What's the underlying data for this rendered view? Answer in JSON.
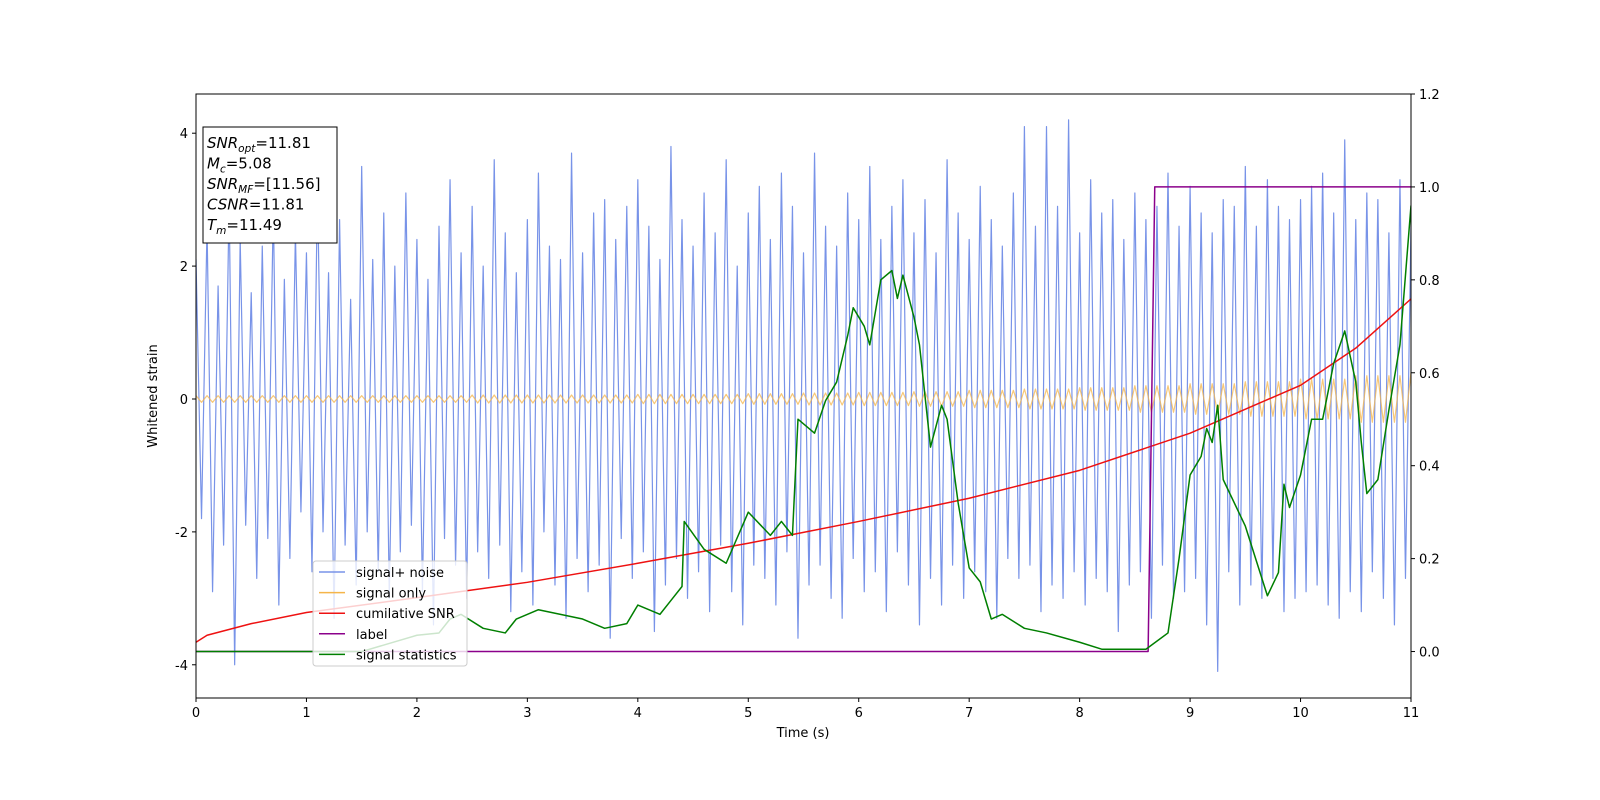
{
  "chart_data": {
    "type": "line",
    "xlabel": "Time (s)",
    "ylabel": "Whitened strain",
    "xlim": [
      0,
      11
    ],
    "xticks": [
      0,
      1,
      2,
      3,
      4,
      5,
      6,
      7,
      8,
      9,
      10,
      11
    ],
    "ylim": [
      -4.5,
      4.59
    ],
    "yticks": [
      -4,
      -2,
      0,
      2,
      4
    ],
    "y2lim": [
      -0.1,
      1.2
    ],
    "y2ticks": [
      {
        "value": 0,
        "label": "0.0"
      },
      {
        "value": 0.2,
        "label": "0.2"
      },
      {
        "value": 0.4,
        "label": "0.4"
      },
      {
        "value": 0.6,
        "label": "0.6"
      },
      {
        "value": 0.8,
        "label": "0.8"
      },
      {
        "value": 1.0,
        "label": "1.0"
      },
      {
        "value": 1.2,
        "label": "1.2"
      }
    ],
    "legend": "lower left",
    "annotation": [
      {
        "main": "SNR",
        "sub": "opt",
        "rest": "=11.81"
      },
      {
        "main": "M",
        "sub": "c",
        "rest": "=5.08"
      },
      {
        "main": "SNR",
        "sub": "MF",
        "rest": "=[11.56]"
      },
      {
        "main": "CSNR",
        "rest": "=11.81"
      },
      {
        "main": "T",
        "sub": "m",
        "rest": "=11.49"
      }
    ],
    "x": [
      0,
      0.05,
      0.1,
      0.15,
      0.2,
      0.25,
      0.3,
      0.35,
      0.4,
      0.45,
      0.5,
      0.55,
      0.6,
      0.65,
      0.7,
      0.75,
      0.8,
      0.85,
      0.9,
      0.95,
      1,
      1.05,
      1.1,
      1.15,
      1.2,
      1.25,
      1.3,
      1.35,
      1.4,
      1.45,
      1.5,
      1.55,
      1.6,
      1.65,
      1.7,
      1.75,
      1.8,
      1.85,
      1.9,
      1.95,
      2,
      2.05,
      2.1,
      2.15,
      2.2,
      2.25,
      2.3,
      2.35,
      2.4,
      2.45,
      2.5,
      2.55,
      2.6,
      2.65,
      2.7,
      2.75,
      2.8,
      2.85,
      2.9,
      2.95,
      3,
      3.05,
      3.1,
      3.15,
      3.2,
      3.25,
      3.3,
      3.35,
      3.4,
      3.45,
      3.5,
      3.55,
      3.6,
      3.65,
      3.7,
      3.75,
      3.8,
      3.85,
      3.9,
      3.95,
      4,
      4.05,
      4.1,
      4.15,
      4.2,
      4.25,
      4.3,
      4.35,
      4.4,
      4.45,
      4.5,
      4.55,
      4.6,
      4.65,
      4.7,
      4.75,
      4.8,
      4.85,
      4.9,
      4.95,
      5,
      5.05,
      5.1,
      5.15,
      5.2,
      5.25,
      5.3,
      5.35,
      5.4,
      5.45,
      5.5,
      5.55,
      5.6,
      5.65,
      5.7,
      5.75,
      5.8,
      5.85,
      5.9,
      5.95,
      6,
      6.05,
      6.1,
      6.15,
      6.2,
      6.25,
      6.3,
      6.35,
      6.4,
      6.45,
      6.5,
      6.55,
      6.6,
      6.65,
      6.7,
      6.75,
      6.8,
      6.85,
      6.9,
      6.95,
      7,
      7.05,
      7.1,
      7.15,
      7.2,
      7.25,
      7.3,
      7.35,
      7.4,
      7.45,
      7.5,
      7.55,
      7.6,
      7.65,
      7.7,
      7.75,
      7.8,
      7.85,
      7.9,
      7.95,
      8,
      8.05,
      8.1,
      8.15,
      8.2,
      8.25,
      8.3,
      8.35,
      8.4,
      8.45,
      8.5,
      8.55,
      8.6,
      8.65,
      8.7,
      8.75,
      8.8,
      8.85,
      8.9,
      8.95,
      9,
      9.05,
      9.1,
      9.15,
      9.2,
      9.25,
      9.3,
      9.35,
      9.4,
      9.45,
      9.5,
      9.55,
      9.6,
      9.65,
      9.7,
      9.75,
      9.8,
      9.85,
      9.9,
      9.95,
      10,
      10.05,
      10.1,
      10.15,
      10.2,
      10.25,
      10.3,
      10.35,
      10.4,
      10.45,
      10.5,
      10.55,
      10.6,
      10.65,
      10.7,
      10.75,
      10.8,
      10.85,
      10.9,
      10.95,
      11
    ],
    "series": [
      {
        "name": "signal+ noise",
        "color": "#7893e8",
        "values": [
          2.1,
          -1.8,
          2.6,
          -2.9,
          1.7,
          -2.2,
          3.0,
          -4.0,
          2.4,
          -1.9,
          1.6,
          -2.7,
          2.3,
          -2.1,
          2.9,
          -3.1,
          1.8,
          -2.4,
          2.5,
          -1.7,
          2.2,
          -2.6,
          3.2,
          -2.0,
          1.9,
          -3.3,
          2.7,
          -2.2,
          1.5,
          -2.8,
          3.5,
          -2.0,
          2.1,
          -2.6,
          2.8,
          -3.0,
          2.0,
          -2.3,
          3.1,
          -1.9,
          2.4,
          -2.9,
          1.8,
          -3.4,
          2.6,
          -2.1,
          3.3,
          -2.5,
          2.2,
          -3.0,
          2.9,
          -2.3,
          2.0,
          -2.7,
          3.6,
          -2.2,
          2.5,
          -3.2,
          1.9,
          -2.6,
          2.7,
          -3.1,
          3.4,
          -2.0,
          2.3,
          -2.8,
          2.1,
          -3.3,
          3.7,
          -2.4,
          2.2,
          -2.9,
          2.8,
          -2.5,
          3.0,
          -3.6,
          2.4,
          -2.1,
          2.9,
          -2.7,
          3.3,
          -2.3,
          2.6,
          -3.5,
          2.1,
          -2.8,
          3.8,
          -2.4,
          2.7,
          -3.0,
          2.3,
          -2.6,
          3.1,
          -3.2,
          2.5,
          -2.2,
          3.6,
          -2.9,
          2.0,
          -3.4,
          2.8,
          -2.5,
          3.2,
          -2.7,
          2.4,
          -3.1,
          3.4,
          -2.3,
          2.9,
          -3.6,
          2.2,
          -2.8,
          3.7,
          -2.5,
          2.6,
          -3.0,
          2.3,
          -3.3,
          3.1,
          -2.4,
          2.7,
          -2.9,
          3.5,
          -2.6,
          2.4,
          -3.2,
          2.9,
          -2.3,
          3.3,
          -2.8,
          2.5,
          -3.4,
          3.0,
          -2.7,
          2.2,
          -3.1,
          3.6,
          -2.5,
          2.8,
          -3.0,
          2.4,
          -2.6,
          3.2,
          -2.9,
          2.7,
          -3.3,
          2.3,
          -2.4,
          3.1,
          -2.7,
          4.1,
          -2.5,
          2.6,
          -3.2,
          4.1,
          -2.8,
          2.9,
          -3.0,
          4.2,
          -2.6,
          2.5,
          -3.1,
          3.3,
          -2.7,
          2.8,
          -2.9,
          3.0,
          -3.5,
          2.4,
          -2.8,
          3.1,
          -2.6,
          2.7,
          -3.3,
          2.9,
          -2.5,
          3.4,
          -3.0,
          2.6,
          -2.9,
          3.2,
          -2.7,
          2.8,
          -3.4,
          2.5,
          -4.1,
          3.0,
          -2.6,
          2.9,
          -3.1,
          3.5,
          -2.8,
          2.6,
          -3.0,
          3.3,
          -2.7,
          2.9,
          -3.2,
          2.7,
          -3.0,
          3.0,
          -2.9,
          3.2,
          -2.8,
          3.4,
          -3.1,
          2.8,
          -3.3,
          3.9,
          -2.9,
          2.7,
          -3.2,
          3.1,
          -2.6,
          3.0,
          -3.0,
          2.5,
          -3.4,
          3.3,
          -2.7,
          2.6
        ]
      },
      {
        "name": "signal only",
        "color": "#f5b54a",
        "values": [
          0.05,
          -0.05,
          0.05,
          -0.05,
          0.05,
          -0.05,
          0.05,
          -0.05,
          0.05,
          -0.05,
          0.05,
          -0.05,
          0.05,
          -0.05,
          0.05,
          -0.05,
          0.05,
          -0.05,
          0.05,
          -0.05,
          0.05,
          -0.05,
          0.05,
          -0.05,
          0.05,
          -0.05,
          0.05,
          -0.05,
          0.05,
          -0.05,
          0.05,
          -0.05,
          0.05,
          -0.05,
          0.05,
          -0.05,
          0.05,
          -0.05,
          0.05,
          -0.05,
          0.05,
          -0.05,
          0.05,
          -0.05,
          0.05,
          -0.05,
          0.05,
          -0.05,
          0.05,
          -0.05,
          0.06,
          -0.06,
          0.06,
          -0.06,
          0.06,
          -0.06,
          0.06,
          -0.06,
          0.06,
          -0.06,
          0.06,
          -0.06,
          0.06,
          -0.06,
          0.06,
          -0.06,
          0.06,
          -0.06,
          0.06,
          -0.06,
          0.06,
          -0.06,
          0.06,
          -0.06,
          0.06,
          -0.06,
          0.06,
          -0.06,
          0.06,
          -0.06,
          0.07,
          -0.07,
          0.07,
          -0.07,
          0.07,
          -0.07,
          0.07,
          -0.07,
          0.07,
          -0.07,
          0.07,
          -0.07,
          0.07,
          -0.07,
          0.07,
          -0.07,
          0.07,
          -0.07,
          0.07,
          -0.07,
          0.08,
          -0.08,
          0.08,
          -0.08,
          0.08,
          -0.08,
          0.08,
          -0.08,
          0.08,
          -0.08,
          0.09,
          -0.09,
          0.09,
          -0.09,
          0.09,
          -0.09,
          0.09,
          -0.09,
          0.09,
          -0.09,
          0.1,
          -0.1,
          0.1,
          -0.1,
          0.1,
          -0.1,
          0.1,
          -0.1,
          0.1,
          -0.1,
          0.11,
          -0.11,
          0.11,
          -0.11,
          0.11,
          -0.11,
          0.11,
          -0.11,
          0.11,
          -0.11,
          0.13,
          -0.13,
          0.13,
          -0.13,
          0.13,
          -0.13,
          0.13,
          -0.13,
          0.13,
          -0.13,
          0.15,
          -0.15,
          0.15,
          -0.15,
          0.15,
          -0.15,
          0.15,
          -0.15,
          0.15,
          -0.15,
          0.17,
          -0.17,
          0.17,
          -0.17,
          0.17,
          -0.17,
          0.17,
          -0.17,
          0.17,
          -0.17,
          0.2,
          -0.2,
          0.2,
          -0.2,
          0.2,
          -0.2,
          0.2,
          -0.2,
          0.2,
          -0.2,
          0.23,
          -0.23,
          0.23,
          -0.23,
          0.23,
          -0.23,
          0.23,
          -0.23,
          0.23,
          -0.23,
          0.26,
          -0.26,
          0.26,
          -0.26,
          0.26,
          -0.26,
          0.26,
          -0.26,
          0.26,
          -0.26,
          0.3,
          -0.3,
          0.3,
          -0.3,
          0.3,
          -0.3,
          0.3,
          -0.3,
          0.3,
          -0.3,
          0.35,
          -0.35,
          0.35,
          -0.35,
          0.35,
          -0.35,
          0.35,
          -0.35,
          0.35,
          -0.35,
          0.4
        ]
      },
      {
        "name": "cumilative SNR",
        "color": "#ee1111",
        "axis": "y2",
        "x": [
          0,
          0.1,
          0.5,
          1,
          2,
          3,
          4,
          5,
          6,
          7,
          8,
          9,
          10,
          10.5,
          11
        ],
        "values": [
          0.02,
          0.035,
          0.06,
          0.084,
          0.116,
          0.149,
          0.19,
          0.233,
          0.28,
          0.33,
          0.39,
          0.47,
          0.573,
          0.653,
          0.759
        ]
      },
      {
        "name": "label",
        "color": "#8b008b",
        "axis": "y2",
        "x": [
          0,
          8.62,
          8.68,
          11
        ],
        "values": [
          0,
          0,
          1,
          1
        ]
      },
      {
        "name": "signal statistics",
        "color": "#007f00",
        "axis": "y2",
        "x": [
          0,
          1.5,
          2,
          2.2,
          2.3,
          2.4,
          2.6,
          2.8,
          2.9,
          3.1,
          3.3,
          3.5,
          3.7,
          3.9,
          4.0,
          4.2,
          4.3,
          4.4,
          4.42,
          4.6,
          4.8,
          5.0,
          5.2,
          5.3,
          5.4,
          5.45,
          5.6,
          5.7,
          5.8,
          5.9,
          5.95,
          6.05,
          6.1,
          6.2,
          6.3,
          6.35,
          6.4,
          6.5,
          6.55,
          6.65,
          6.75,
          6.8,
          6.9,
          7.0,
          7.1,
          7.2,
          7.3,
          7.5,
          7.7,
          8.0,
          8.2,
          8.6,
          8.8,
          8.9,
          9.0,
          9.1,
          9.15,
          9.2,
          9.25,
          9.3,
          9.5,
          9.7,
          9.8,
          9.85,
          9.9,
          10.0,
          10.1,
          10.2,
          10.3,
          10.4,
          10.5,
          10.55,
          10.6,
          10.7,
          10.8,
          10.9,
          11
        ],
        "values": [
          0,
          0,
          0.035,
          0.04,
          0.07,
          0.08,
          0.05,
          0.04,
          0.07,
          0.09,
          0.08,
          0.07,
          0.05,
          0.06,
          0.1,
          0.08,
          0.11,
          0.14,
          0.28,
          0.22,
          0.19,
          0.3,
          0.25,
          0.28,
          0.25,
          0.5,
          0.47,
          0.54,
          0.58,
          0.68,
          0.74,
          0.7,
          0.66,
          0.8,
          0.82,
          0.76,
          0.81,
          0.72,
          0.66,
          0.44,
          0.53,
          0.5,
          0.32,
          0.18,
          0.15,
          0.07,
          0.08,
          0.05,
          0.04,
          0.02,
          0.005,
          0.005,
          0.04,
          0.2,
          0.38,
          0.42,
          0.48,
          0.45,
          0.53,
          0.37,
          0.27,
          0.12,
          0.17,
          0.36,
          0.31,
          0.38,
          0.5,
          0.5,
          0.62,
          0.69,
          0.58,
          0.45,
          0.34,
          0.37,
          0.52,
          0.66,
          0.96
        ]
      }
    ]
  }
}
